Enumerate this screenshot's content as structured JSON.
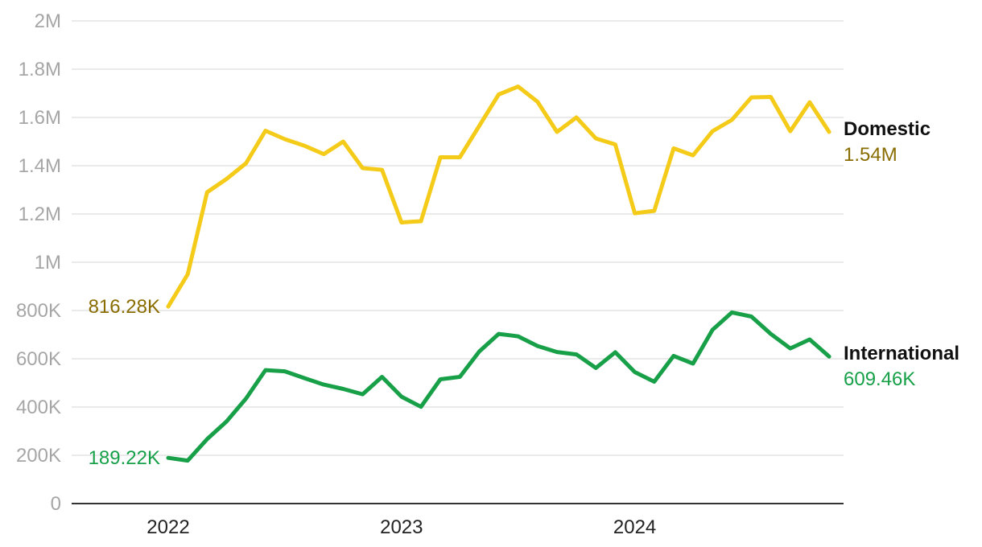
{
  "chart_data": {
    "type": "line",
    "x_start": "2022-01",
    "x_labels": [
      "2022",
      "2023",
      "2024"
    ],
    "y_ticks": [
      0,
      200000,
      400000,
      600000,
      800000,
      1000000,
      1200000,
      1400000,
      1600000,
      1800000,
      2000000
    ],
    "y_tick_labels": [
      "0",
      "200K",
      "400K",
      "600K",
      "800K",
      "1M",
      "1.2M",
      "1.4M",
      "1.6M",
      "1.8M",
      "2M"
    ],
    "ylim": [
      0,
      2000000
    ],
    "grid": true,
    "series": [
      {
        "name": "Domestic",
        "color": "#f5cb1a",
        "label_color": "#8a6d00",
        "start_label": "816.28K",
        "end_label": "1.54M",
        "values": [
          816280,
          950000,
          1290000,
          1345000,
          1410000,
          1545000,
          1510000,
          1483000,
          1448000,
          1500000,
          1390000,
          1383000,
          1165000,
          1170000,
          1435000,
          1435000,
          1565000,
          1695000,
          1728000,
          1665000,
          1540000,
          1600000,
          1513000,
          1488000,
          1203000,
          1213000,
          1472000,
          1443000,
          1543000,
          1590000,
          1683000,
          1685000,
          1543000,
          1663000,
          1540000
        ]
      },
      {
        "name": "International",
        "color": "#18a049",
        "label_color": "#18a049",
        "start_label": "189.22K",
        "end_label": "609.46K",
        "values": [
          189220,
          178000,
          267000,
          340000,
          435000,
          553000,
          548000,
          520000,
          493000,
          475000,
          453000,
          525000,
          443000,
          401000,
          515000,
          525000,
          630000,
          703000,
          693000,
          653000,
          628000,
          618000,
          562000,
          627000,
          545000,
          505000,
          612000,
          580000,
          720000,
          792000,
          775000,
          703000,
          643000,
          680000,
          609460
        ]
      }
    ]
  }
}
